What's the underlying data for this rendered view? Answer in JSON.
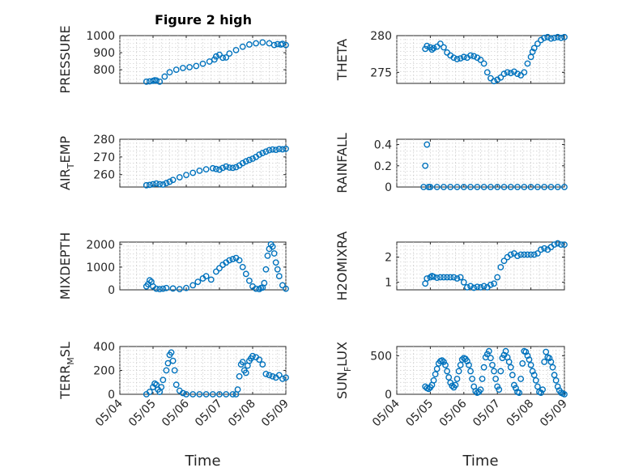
{
  "figure": {
    "title": "Figure 2 high"
  },
  "colors": {
    "marker": "#0072BD"
  },
  "chart_data": [
    {
      "type": "scatter",
      "name": "pressure",
      "ylabel": "PRESSURE",
      "xlabel": "",
      "title": "Figure 2 high",
      "xlim": [
        0,
        5
      ],
      "ylim": [
        720,
        1000
      ],
      "yticks": [
        800,
        900,
        1000
      ],
      "yticklabels": [
        "800",
        "900",
        "1000"
      ],
      "xticks": [
        0,
        1,
        2,
        3,
        4,
        5
      ],
      "xticklabels": [],
      "x": [
        0.8,
        0.9,
        1.0,
        1.05,
        1.1,
        1.2,
        1.35,
        1.5,
        1.7,
        1.9,
        2.1,
        2.3,
        2.5,
        2.7,
        2.85,
        2.9,
        3.0,
        3.1,
        3.2,
        3.3,
        3.5,
        3.7,
        3.9,
        4.1,
        4.3,
        4.5,
        4.65,
        4.75,
        4.85,
        4.9,
        5.0
      ],
      "y": [
        730,
        732,
        735,
        738,
        737,
        730,
        760,
        785,
        800,
        810,
        815,
        822,
        835,
        848,
        860,
        878,
        888,
        870,
        872,
        895,
        915,
        935,
        948,
        955,
        960,
        955,
        945,
        950,
        948,
        952,
        945
      ],
      "grid": true
    },
    {
      "type": "scatter",
      "name": "theta",
      "ylabel": "THETA",
      "xlabel": "",
      "xlim": [
        0,
        5
      ],
      "ylim": [
        273.5,
        280
      ],
      "yticks": [
        275,
        280
      ],
      "yticklabels": [
        "275",
        "280"
      ],
      "xticks": [
        0,
        1,
        2,
        3,
        4,
        5
      ],
      "xticklabels": [],
      "x": [
        0.85,
        0.9,
        1.0,
        1.05,
        1.1,
        1.2,
        1.3,
        1.4,
        1.5,
        1.6,
        1.7,
        1.8,
        1.9,
        2.0,
        2.1,
        2.2,
        2.3,
        2.4,
        2.5,
        2.6,
        2.7,
        2.8,
        2.9,
        3.0,
        3.1,
        3.2,
        3.3,
        3.4,
        3.5,
        3.6,
        3.7,
        3.8,
        3.9,
        4.0,
        4.05,
        4.1,
        4.2,
        4.3,
        4.4,
        4.5,
        4.6,
        4.7,
        4.8,
        4.9,
        5.0
      ],
      "y": [
        278.2,
        278.6,
        278.4,
        278.1,
        278.3,
        278.5,
        278.9,
        278.4,
        277.7,
        277.3,
        277.0,
        276.8,
        276.9,
        277.1,
        277.0,
        277.3,
        277.2,
        277.0,
        276.7,
        276.2,
        275.0,
        274.2,
        273.8,
        274.0,
        274.3,
        274.8,
        275.0,
        274.9,
        275.1,
        274.8,
        274.6,
        275.0,
        276.2,
        277.1,
        277.8,
        278.3,
        278.9,
        279.4,
        279.7,
        279.8,
        279.6,
        279.7,
        279.8,
        279.7,
        279.8
      ],
      "grid": true
    },
    {
      "type": "scatter",
      "name": "air_temp",
      "ylabel": "AIR_TEMP",
      "xlabel": "",
      "xlim": [
        0,
        5
      ],
      "ylim": [
        253,
        280
      ],
      "yticks": [
        260,
        270,
        280
      ],
      "yticklabels": [
        "260",
        "270",
        "280"
      ],
      "xticks": [
        0,
        1,
        2,
        3,
        4,
        5
      ],
      "xticklabels": [],
      "x": [
        0.8,
        0.9,
        1.0,
        1.1,
        1.2,
        1.3,
        1.4,
        1.5,
        1.6,
        1.8,
        2.0,
        2.2,
        2.4,
        2.6,
        2.8,
        2.9,
        3.0,
        3.1,
        3.2,
        3.3,
        3.4,
        3.5,
        3.6,
        3.7,
        3.8,
        3.9,
        4.0,
        4.1,
        4.2,
        4.3,
        4.4,
        4.5,
        4.6,
        4.7,
        4.8,
        4.9,
        5.0
      ],
      "y": [
        254,
        254.2,
        254.6,
        255.0,
        254.6,
        254.4,
        255.2,
        256.0,
        257.0,
        258.5,
        259.8,
        261.0,
        262.2,
        263.0,
        263.6,
        263.2,
        262.8,
        263.8,
        264.6,
        264.0,
        263.8,
        264.2,
        265.2,
        266.5,
        267.5,
        268.3,
        269.0,
        270.0,
        271.3,
        272.2,
        273.0,
        273.8,
        274.2,
        274.0,
        274.5,
        274.3,
        274.6
      ],
      "grid": true
    },
    {
      "type": "scatter",
      "name": "rainfall",
      "ylabel": "RAINFALL",
      "xlabel": "",
      "xlim": [
        0,
        5
      ],
      "ylim": [
        0,
        0.45
      ],
      "yticks": [
        0,
        0.2,
        0.4
      ],
      "yticklabels": [
        "0",
        "0.2",
        "0.4"
      ],
      "xticks": [
        0,
        1,
        2,
        3,
        4,
        5
      ],
      "xticklabels": [],
      "x": [
        0.8,
        0.85,
        0.9,
        0.95,
        1.0,
        1.2,
        1.4,
        1.6,
        1.8,
        2.0,
        2.2,
        2.4,
        2.6,
        2.8,
        3.0,
        3.2,
        3.4,
        3.6,
        3.8,
        4.0,
        4.2,
        4.4,
        4.6,
        4.8,
        5.0
      ],
      "y": [
        0,
        0.2,
        0.4,
        0,
        0,
        0,
        0,
        0,
        0,
        0,
        0,
        0,
        0,
        0,
        0,
        0,
        0,
        0,
        0,
        0,
        0,
        0,
        0,
        0,
        0
      ],
      "grid": true
    },
    {
      "type": "scatter",
      "name": "mixdepth",
      "ylabel": "MIXDEPTH",
      "xlabel": "",
      "xlim": [
        0,
        5
      ],
      "ylim": [
        0,
        2100
      ],
      "yticks": [
        0,
        1000,
        2000
      ],
      "yticklabels": [
        "0",
        "1000",
        "2000"
      ],
      "xticks": [
        0,
        1,
        2,
        3,
        4,
        5
      ],
      "xticklabels": [],
      "x": [
        0.8,
        0.85,
        0.9,
        0.95,
        1.0,
        1.1,
        1.2,
        1.3,
        1.4,
        1.6,
        1.8,
        2.0,
        2.2,
        2.35,
        2.5,
        2.6,
        2.75,
        2.9,
        3.0,
        3.1,
        3.2,
        3.3,
        3.4,
        3.5,
        3.6,
        3.7,
        3.8,
        3.9,
        4.0,
        4.1,
        4.2,
        4.25,
        4.3,
        4.35,
        4.4,
        4.45,
        4.5,
        4.55,
        4.6,
        4.65,
        4.7,
        4.75,
        4.8,
        4.9,
        5.0
      ],
      "y": [
        150,
        250,
        420,
        350,
        150,
        50,
        30,
        50,
        80,
        60,
        30,
        80,
        200,
        350,
        500,
        600,
        450,
        800,
        950,
        1100,
        1200,
        1300,
        1350,
        1400,
        1300,
        1000,
        700,
        400,
        150,
        50,
        30,
        80,
        100,
        300,
        900,
        1500,
        1800,
        2000,
        1900,
        1600,
        1200,
        900,
        600,
        200,
        50
      ],
      "grid": true
    },
    {
      "type": "scatter",
      "name": "h2omixra",
      "ylabel": "H2OMIXRA",
      "xlabel": "",
      "xlim": [
        0,
        5
      ],
      "ylim": [
        0.7,
        2.6
      ],
      "yticks": [
        1,
        2
      ],
      "yticklabels": [
        "1",
        "2"
      ],
      "xticks": [
        0,
        1,
        2,
        3,
        4,
        5
      ],
      "xticklabels": [],
      "x": [
        0.85,
        0.9,
        1.0,
        1.05,
        1.1,
        1.2,
        1.3,
        1.4,
        1.5,
        1.6,
        1.7,
        1.8,
        1.9,
        2.0,
        2.1,
        2.2,
        2.3,
        2.4,
        2.5,
        2.6,
        2.7,
        2.8,
        2.9,
        3.0,
        3.1,
        3.2,
        3.3,
        3.4,
        3.5,
        3.6,
        3.7,
        3.8,
        3.9,
        4.0,
        4.1,
        4.2,
        4.3,
        4.4,
        4.5,
        4.6,
        4.7,
        4.8,
        4.9,
        5.0
      ],
      "y": [
        0.95,
        1.15,
        1.2,
        1.25,
        1.22,
        1.18,
        1.2,
        1.2,
        1.2,
        1.2,
        1.2,
        1.15,
        1.2,
        1.0,
        0.8,
        0.85,
        0.78,
        0.82,
        0.8,
        0.85,
        0.8,
        0.9,
        0.95,
        1.2,
        1.6,
        1.85,
        2.0,
        2.1,
        2.15,
        2.05,
        2.1,
        2.1,
        2.1,
        2.1,
        2.1,
        2.15,
        2.3,
        2.35,
        2.3,
        2.4,
        2.5,
        2.55,
        2.5,
        2.5
      ],
      "grid": true
    },
    {
      "type": "scatter",
      "name": "terr_msl",
      "ylabel": "TERR_MSL",
      "xlabel": "Time",
      "xlim": [
        0,
        5
      ],
      "ylim": [
        0,
        400
      ],
      "yticks": [
        0,
        200,
        400
      ],
      "yticklabels": [
        "0",
        "200",
        "400"
      ],
      "xticks": [
        0,
        1,
        2,
        3,
        4,
        5
      ],
      "xticklabels": [
        "05/04",
        "05/05",
        "05/06",
        "05/07",
        "05/08",
        "05/09"
      ],
      "x": [
        0.8,
        0.9,
        1.0,
        1.05,
        1.1,
        1.15,
        1.2,
        1.25,
        1.3,
        1.4,
        1.45,
        1.5,
        1.55,
        1.6,
        1.65,
        1.7,
        1.8,
        1.9,
        2.0,
        2.2,
        2.4,
        2.6,
        2.8,
        3.0,
        3.2,
        3.4,
        3.5,
        3.55,
        3.6,
        3.65,
        3.7,
        3.75,
        3.8,
        3.85,
        3.9,
        3.95,
        4.0,
        4.1,
        4.2,
        4.3,
        4.4,
        4.5,
        4.6,
        4.7,
        4.8,
        4.9,
        5.0
      ],
      "y": [
        0,
        20,
        60,
        90,
        80,
        40,
        20,
        60,
        120,
        200,
        260,
        330,
        350,
        280,
        200,
        80,
        30,
        10,
        0,
        0,
        0,
        0,
        0,
        0,
        0,
        0,
        0,
        40,
        150,
        250,
        270,
        200,
        180,
        240,
        280,
        300,
        320,
        310,
        290,
        250,
        170,
        160,
        150,
        140,
        160,
        130,
        140
      ],
      "grid": true
    },
    {
      "type": "scatter",
      "name": "sun_flux",
      "ylabel": "SUN_FLUX",
      "xlabel": "Time",
      "xlim": [
        0,
        5
      ],
      "ylim": [
        0,
        620
      ],
      "yticks": [
        0,
        500
      ],
      "yticklabels": [
        "0",
        "500"
      ],
      "xticks": [
        0,
        1,
        2,
        3,
        4,
        5
      ],
      "xticklabels": [
        "05/04",
        "05/05",
        "05/06",
        "05/07",
        "05/08",
        "05/09"
      ],
      "x": [
        0.85,
        0.9,
        0.95,
        1.0,
        1.05,
        1.1,
        1.15,
        1.2,
        1.25,
        1.3,
        1.35,
        1.4,
        1.45,
        1.5,
        1.55,
        1.6,
        1.65,
        1.7,
        1.75,
        1.8,
        1.85,
        1.9,
        1.95,
        2.0,
        2.05,
        2.1,
        2.15,
        2.2,
        2.25,
        2.3,
        2.35,
        2.4,
        2.45,
        2.5,
        2.55,
        2.6,
        2.65,
        2.7,
        2.75,
        2.8,
        2.85,
        2.9,
        2.95,
        3.0,
        3.05,
        3.1,
        3.15,
        3.2,
        3.25,
        3.3,
        3.35,
        3.4,
        3.45,
        3.5,
        3.55,
        3.6,
        3.65,
        3.7,
        3.75,
        3.8,
        3.85,
        3.9,
        3.95,
        4.0,
        4.05,
        4.1,
        4.15,
        4.2,
        4.25,
        4.3,
        4.35,
        4.4,
        4.45,
        4.5,
        4.55,
        4.6,
        4.65,
        4.7,
        4.75,
        4.8,
        4.85,
        4.9,
        4.95,
        5.0
      ],
      "y": [
        100,
        80,
        70,
        90,
        120,
        180,
        260,
        330,
        400,
        430,
        440,
        420,
        380,
        300,
        220,
        150,
        110,
        90,
        120,
        200,
        300,
        380,
        450,
        470,
        460,
        430,
        380,
        300,
        200,
        100,
        40,
        20,
        30,
        60,
        200,
        350,
        480,
        520,
        560,
        470,
        380,
        300,
        200,
        100,
        60,
        300,
        470,
        510,
        560,
        480,
        420,
        350,
        250,
        120,
        80,
        30,
        20,
        200,
        400,
        560,
        550,
        500,
        450,
        380,
        300,
        250,
        180,
        100,
        30,
        20,
        60,
        420,
        550,
        480,
        470,
        420,
        350,
        250,
        180,
        100,
        50,
        20,
        10,
        0
      ],
      "grid": true
    }
  ]
}
